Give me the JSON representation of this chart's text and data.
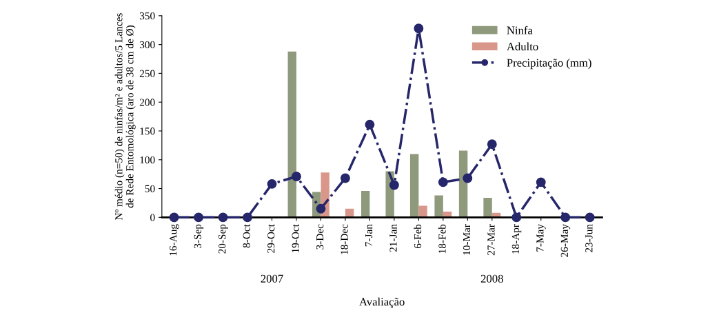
{
  "chart_data": {
    "type": "bar",
    "categories": [
      "16-Aug",
      "3-Sep",
      "20-Sep",
      "8-Oct",
      "29-Oct",
      "19-Oct",
      "3-Dec",
      "18-Dec",
      "7-Jan",
      "21-Jan",
      "6-Feb",
      "18-Feb",
      "10-Mar",
      "27-Mar",
      "18-Apr",
      "7-May",
      "26-May",
      "23-Jun"
    ],
    "series": [
      {
        "name": "Ninfa",
        "color": "#8f9a7c",
        "values": [
          0,
          0,
          0,
          0,
          null,
          288,
          44,
          0,
          46,
          80,
          110,
          38,
          116,
          34,
          0,
          0,
          0,
          0
        ]
      },
      {
        "name": "Adulto",
        "color": "#d9978c",
        "values": [
          0,
          0,
          0,
          0,
          0,
          0,
          78,
          15,
          0,
          0,
          20,
          10,
          0,
          8,
          0,
          0,
          0,
          0
        ]
      },
      {
        "name": "Precipitação (mm)",
        "type": "line",
        "color": "#26266a",
        "marker": "circle",
        "line_style": "dashed",
        "values": [
          0,
          0,
          0,
          0,
          58,
          71,
          15,
          68,
          161,
          56,
          328,
          61,
          68,
          127,
          0,
          61,
          0,
          0
        ]
      }
    ],
    "ylim": [
      0,
      350
    ],
    "yticks": [
      0,
      50,
      100,
      150,
      200,
      250,
      300,
      350
    ],
    "ylabel": "Nº médio (n=50) de ninfas/m² e adultos/5 Lances\nde Rede Entomológica (aro de 38 cm de Ø)",
    "xlabel": "Avaliação",
    "annotations": [
      "2007",
      "2008"
    ],
    "legend": "top right",
    "grid": false
  }
}
